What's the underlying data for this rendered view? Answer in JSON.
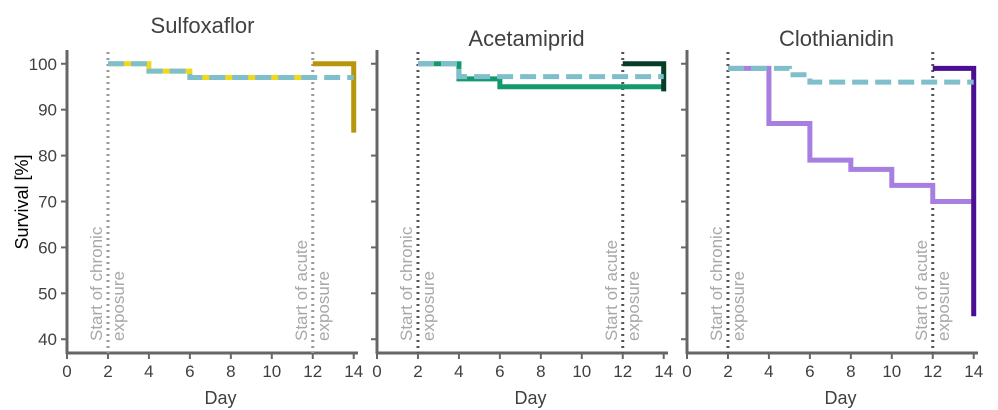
{
  "chart_data": {
    "type": "line",
    "ylabel": "Survival [%]",
    "xlabel": "Day",
    "xlim": [
      0,
      14.6
    ],
    "ylim": [
      37,
      103
    ],
    "xticks": [
      0,
      2,
      4,
      6,
      8,
      10,
      12,
      14
    ],
    "yticks": [
      40,
      50,
      60,
      70,
      80,
      90,
      100
    ],
    "annotations": {
      "chronic_day": 2,
      "acute_day": 12,
      "chronic_label": [
        "Start of chronic",
        "exposure"
      ],
      "acute_label": [
        "Start of acute",
        "exposure"
      ]
    },
    "panels": [
      {
        "title": "Sulfoxaflor",
        "vline_color": "#999999",
        "series": [
          {
            "style": "solid",
            "color": "#f2d81a",
            "x": [
              2,
              3,
              4,
              5,
              6,
              12
            ],
            "y": [
              100,
              100,
              98.4,
              98.4,
              97,
              97
            ]
          },
          {
            "style": "solid",
            "color": "#b8960c",
            "x": [
              12,
              14,
              14
            ],
            "y": [
              100,
              100,
              85
            ]
          },
          {
            "style": "dashed",
            "color": "#7fbfcc",
            "x": [
              2,
              4,
              6,
              14
            ],
            "y": [
              100,
              98.4,
              97,
              97
            ]
          }
        ]
      },
      {
        "title": "Acetamiprid",
        "vline_color": "#555555",
        "series": [
          {
            "style": "solid",
            "color": "#129a6e",
            "x": [
              2,
              4,
              6,
              14
            ],
            "y": [
              100,
              96.7,
              95,
              95
            ]
          },
          {
            "style": "solid",
            "color": "#063d26",
            "x": [
              12,
              14,
              14
            ],
            "y": [
              100,
              100,
              94
            ]
          },
          {
            "style": "dashed",
            "color": "#7fbfcc",
            "x": [
              2,
              4,
              14
            ],
            "y": [
              100,
              97.2,
              97.2
            ]
          }
        ]
      },
      {
        "title": "Clothianidin",
        "vline_color": "#555555",
        "series": [
          {
            "style": "solid",
            "color": "#a67fe0",
            "x": [
              2,
              4,
              6,
              8,
              10,
              12,
              14
            ],
            "y": [
              99,
              87,
              79,
              77,
              73.5,
              70,
              70
            ]
          },
          {
            "style": "solid",
            "color": "#4b0f94",
            "x": [
              12,
              14,
              14
            ],
            "y": [
              99,
              99,
              45
            ]
          },
          {
            "style": "dashed",
            "color": "#7fbfcc",
            "x": [
              2,
              5,
              6,
              14
            ],
            "y": [
              99,
              97.6,
              96,
              96
            ]
          }
        ]
      }
    ]
  }
}
